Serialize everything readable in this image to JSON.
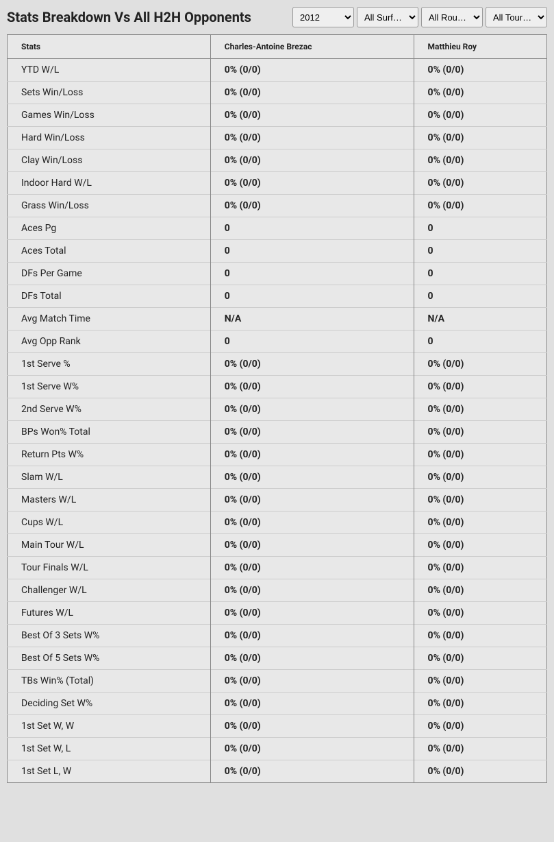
{
  "title": "Stats Breakdown Vs All H2H Opponents",
  "filters": {
    "year": {
      "selected": "2012",
      "options": [
        "2012"
      ]
    },
    "surface": {
      "selected": "All Surf…",
      "options": [
        "All Surf…"
      ]
    },
    "round": {
      "selected": "All Rou…",
      "options": [
        "All Rou…"
      ]
    },
    "tour": {
      "selected": "All Tour…",
      "options": [
        "All Tour…"
      ]
    }
  },
  "table": {
    "headers": {
      "stats": "Stats",
      "player1": "Charles-Antoine Brezac",
      "player2": "Matthieu Roy"
    },
    "rows": [
      {
        "stat": "YTD W/L",
        "p1": "0% (0/0)",
        "p2": "0% (0/0)"
      },
      {
        "stat": "Sets Win/Loss",
        "p1": "0% (0/0)",
        "p2": "0% (0/0)"
      },
      {
        "stat": "Games Win/Loss",
        "p1": "0% (0/0)",
        "p2": "0% (0/0)"
      },
      {
        "stat": "Hard Win/Loss",
        "p1": "0% (0/0)",
        "p2": "0% (0/0)"
      },
      {
        "stat": "Clay Win/Loss",
        "p1": "0% (0/0)",
        "p2": "0% (0/0)"
      },
      {
        "stat": "Indoor Hard W/L",
        "p1": "0% (0/0)",
        "p2": "0% (0/0)"
      },
      {
        "stat": "Grass Win/Loss",
        "p1": "0% (0/0)",
        "p2": "0% (0/0)"
      },
      {
        "stat": "Aces Pg",
        "p1": "0",
        "p2": "0"
      },
      {
        "stat": "Aces Total",
        "p1": "0",
        "p2": "0"
      },
      {
        "stat": "DFs Per Game",
        "p1": "0",
        "p2": "0"
      },
      {
        "stat": "DFs Total",
        "p1": "0",
        "p2": "0"
      },
      {
        "stat": "Avg Match Time",
        "p1": "N/A",
        "p2": "N/A"
      },
      {
        "stat": "Avg Opp Rank",
        "p1": "0",
        "p2": "0"
      },
      {
        "stat": "1st Serve %",
        "p1": "0% (0/0)",
        "p2": "0% (0/0)"
      },
      {
        "stat": "1st Serve W%",
        "p1": "0% (0/0)",
        "p2": "0% (0/0)"
      },
      {
        "stat": "2nd Serve W%",
        "p1": "0% (0/0)",
        "p2": "0% (0/0)"
      },
      {
        "stat": "BPs Won% Total",
        "p1": "0% (0/0)",
        "p2": "0% (0/0)"
      },
      {
        "stat": "Return Pts W%",
        "p1": "0% (0/0)",
        "p2": "0% (0/0)"
      },
      {
        "stat": "Slam W/L",
        "p1": "0% (0/0)",
        "p2": "0% (0/0)"
      },
      {
        "stat": "Masters W/L",
        "p1": "0% (0/0)",
        "p2": "0% (0/0)"
      },
      {
        "stat": "Cups W/L",
        "p1": "0% (0/0)",
        "p2": "0% (0/0)"
      },
      {
        "stat": "Main Tour W/L",
        "p1": "0% (0/0)",
        "p2": "0% (0/0)"
      },
      {
        "stat": "Tour Finals W/L",
        "p1": "0% (0/0)",
        "p2": "0% (0/0)"
      },
      {
        "stat": "Challenger W/L",
        "p1": "0% (0/0)",
        "p2": "0% (0/0)"
      },
      {
        "stat": "Futures W/L",
        "p1": "0% (0/0)",
        "p2": "0% (0/0)"
      },
      {
        "stat": "Best Of 3 Sets W%",
        "p1": "0% (0/0)",
        "p2": "0% (0/0)"
      },
      {
        "stat": "Best Of 5 Sets W%",
        "p1": "0% (0/0)",
        "p2": "0% (0/0)"
      },
      {
        "stat": "TBs Win% (Total)",
        "p1": "0% (0/0)",
        "p2": "0% (0/0)"
      },
      {
        "stat": "Deciding Set W%",
        "p1": "0% (0/0)",
        "p2": "0% (0/0)"
      },
      {
        "stat": "1st Set W, W",
        "p1": "0% (0/0)",
        "p2": "0% (0/0)"
      },
      {
        "stat": "1st Set W, L",
        "p1": "0% (0/0)",
        "p2": "0% (0/0)"
      },
      {
        "stat": "1st Set L, W",
        "p1": "0% (0/0)",
        "p2": "0% (0/0)"
      }
    ]
  },
  "colors": {
    "page_bg": "#e0e0e0",
    "table_bg": "#e8e8e8",
    "border": "#888888",
    "row_border": "#cccccc",
    "text": "#222222"
  }
}
